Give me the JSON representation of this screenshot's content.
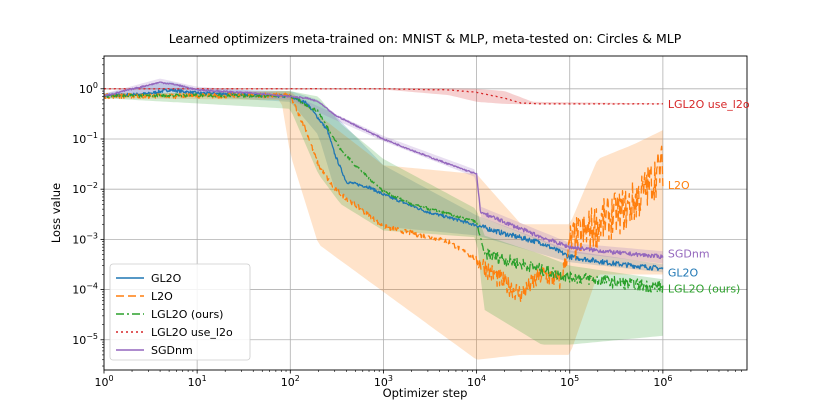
{
  "chart_data": {
    "type": "line",
    "title": "Learned optimizers meta-trained on: MNIST & MLP, meta-tested on: Circles & MLP",
    "xlabel": "Optimizer step",
    "ylabel": "Loss value",
    "xscale": "log",
    "yscale": "log",
    "xlim": [
      1,
      8000000
    ],
    "ylim": [
      2.5e-06,
      4.5
    ],
    "grid": true,
    "legend_position": "lower-left",
    "x_ticks": [
      {
        "value": 1,
        "base": "10",
        "exp": "0"
      },
      {
        "value": 10,
        "base": "10",
        "exp": "1"
      },
      {
        "value": 100,
        "base": "10",
        "exp": "2"
      },
      {
        "value": 1000,
        "base": "10",
        "exp": "3"
      },
      {
        "value": 10000,
        "base": "10",
        "exp": "4"
      },
      {
        "value": 100000,
        "base": "10",
        "exp": "5"
      },
      {
        "value": 1000000,
        "base": "10",
        "exp": "6"
      }
    ],
    "y_ticks": [
      {
        "value": 1,
        "base": "10",
        "exp": "0"
      },
      {
        "value": 0.1,
        "base": "10",
        "exp": "−1"
      },
      {
        "value": 0.01,
        "base": "10",
        "exp": "−2"
      },
      {
        "value": 0.001,
        "base": "10",
        "exp": "−3"
      },
      {
        "value": 0.0001,
        "base": "10",
        "exp": "−4"
      },
      {
        "value": 1e-05,
        "base": "10",
        "exp": "−5"
      }
    ],
    "series": [
      {
        "name": "GL2O",
        "end_label": "GL2O",
        "color": "#1f77b4",
        "dash": "solid",
        "points": [
          [
            1,
            0.72
          ],
          [
            3,
            0.8
          ],
          [
            5,
            0.95
          ],
          [
            10,
            0.82
          ],
          [
            30,
            0.78
          ],
          [
            70,
            0.72
          ],
          [
            100,
            0.7
          ],
          [
            150,
            0.52
          ],
          [
            250,
            0.15
          ],
          [
            300,
            0.05
          ],
          [
            400,
            0.014
          ],
          [
            700,
            0.011
          ],
          [
            1000,
            0.0078
          ],
          [
            3000,
            0.0035
          ],
          [
            6000,
            0.0025
          ],
          [
            10000,
            0.0019
          ],
          [
            20000,
            0.0013
          ],
          [
            50000,
            0.00085
          ],
          [
            100000,
            0.00045
          ],
          [
            300000,
            0.00033
          ],
          [
            1000000,
            0.00026
          ]
        ],
        "band": [
          [
            1,
            0.65,
            0.8
          ],
          [
            5,
            0.8,
            1.4
          ],
          [
            10,
            0.7,
            1.0
          ],
          [
            100,
            0.55,
            0.9
          ],
          [
            200,
            0.12,
            0.6
          ],
          [
            300,
            0.01,
            0.3
          ],
          [
            1000,
            0.0018,
            0.03
          ],
          [
            10000,
            0.0012,
            0.003
          ],
          [
            100000,
            0.00035,
            0.0006
          ],
          [
            1000000,
            0.00022,
            0.00032
          ]
        ]
      },
      {
        "name": "L2O",
        "end_label": "L2O",
        "color": "#ff7f0e",
        "dash": "8,4",
        "points": [
          [
            1,
            0.72
          ],
          [
            10,
            0.72
          ],
          [
            80,
            0.75
          ],
          [
            100,
            0.72
          ],
          [
            150,
            0.14
          ],
          [
            200,
            0.03
          ],
          [
            300,
            0.01
          ],
          [
            1000,
            0.0018
          ],
          [
            5000,
            0.0009
          ],
          [
            10000,
            0.0004
          ],
          [
            15000,
            0.0002
          ],
          [
            30000,
            8e-05
          ],
          [
            50000,
            0.0002
          ],
          [
            80000,
            0.00015
          ],
          [
            100000,
            0.0008
          ],
          [
            200000,
            0.002
          ],
          [
            400000,
            0.004
          ],
          [
            600000,
            0.008
          ],
          [
            1000000,
            0.03
          ]
        ],
        "band": [
          [
            1,
            0.65,
            0.8
          ],
          [
            80,
            0.6,
            0.9
          ],
          [
            100,
            0.05,
            0.9
          ],
          [
            200,
            0.0008,
            0.3
          ],
          [
            1000,
            9e-05,
            0.03
          ],
          [
            10000,
            4e-06,
            0.02
          ],
          [
            30000,
            5e-06,
            0.002
          ],
          [
            100000,
            5e-06,
            0.002
          ],
          [
            200000,
            0.0002,
            0.04
          ],
          [
            500000,
            0.0002,
            0.08
          ],
          [
            1000000,
            0.0002,
            0.15
          ]
        ]
      },
      {
        "name": "LGL2O (ours)",
        "end_label": "LGL2O (ours)",
        "color": "#2ca02c",
        "dash": "8,3,2,3",
        "points": [
          [
            1,
            0.72
          ],
          [
            10,
            0.74
          ],
          [
            100,
            0.72
          ],
          [
            200,
            0.35
          ],
          [
            350,
            0.06
          ],
          [
            500,
            0.03
          ],
          [
            1000,
            0.009
          ],
          [
            2000,
            0.005
          ],
          [
            5000,
            0.0032
          ],
          [
            10000,
            0.0022
          ],
          [
            12000,
            0.00055
          ],
          [
            20000,
            0.0004
          ],
          [
            50000,
            0.00025
          ],
          [
            100000,
            0.00018
          ],
          [
            300000,
            0.00014
          ],
          [
            1000000,
            0.00011
          ]
        ],
        "band": [
          [
            1,
            0.65,
            0.8
          ],
          [
            100,
            0.4,
            0.9
          ],
          [
            200,
            0.02,
            0.7
          ],
          [
            350,
            0.005,
            0.2
          ],
          [
            1000,
            0.0015,
            0.04
          ],
          [
            10000,
            0.0011,
            0.004
          ],
          [
            12000,
            4e-05,
            0.0012
          ],
          [
            50000,
            8e-06,
            0.0005
          ],
          [
            100000,
            8e-06,
            0.0003
          ],
          [
            1000000,
            1.2e-05,
            0.00016
          ]
        ]
      },
      {
        "name": "LGL2O use_l2o",
        "end_label": "LGL2O use_l2o",
        "color": "#d62728",
        "dash": "2,3",
        "points": [
          [
            1,
            1.0
          ],
          [
            100,
            1.0
          ],
          [
            1000,
            1.0
          ],
          [
            5000,
            0.95
          ],
          [
            10000,
            0.85
          ],
          [
            20000,
            0.65
          ],
          [
            30000,
            0.52
          ],
          [
            50000,
            0.5
          ],
          [
            1000000,
            0.5
          ]
        ],
        "band": [
          [
            1,
            0.97,
            1.03
          ],
          [
            1000,
            0.97,
            1.03
          ],
          [
            5000,
            0.75,
            1.02
          ],
          [
            10000,
            0.55,
            1.0
          ],
          [
            20000,
            0.5,
            0.9
          ],
          [
            40000,
            0.49,
            0.55
          ],
          [
            1000000,
            0.49,
            0.51
          ]
        ]
      },
      {
        "name": "SGDnm",
        "end_label": "SGDnm",
        "color": "#9467bd",
        "dash": "solid",
        "points": [
          [
            1,
            0.72
          ],
          [
            4,
            1.35
          ],
          [
            6,
            1.2
          ],
          [
            10,
            0.95
          ],
          [
            50,
            0.8
          ],
          [
            100,
            0.7
          ],
          [
            150,
            0.65
          ],
          [
            200,
            0.55
          ],
          [
            300,
            0.3
          ],
          [
            1000,
            0.1
          ],
          [
            3000,
            0.045
          ],
          [
            6000,
            0.028
          ],
          [
            10000,
            0.02
          ],
          [
            11000,
            0.0035
          ],
          [
            20000,
            0.0022
          ],
          [
            50000,
            0.0011
          ],
          [
            100000,
            0.0007
          ],
          [
            300000,
            0.00055
          ],
          [
            1000000,
            0.00045
          ]
        ],
        "band": [
          [
            1,
            0.65,
            0.8
          ],
          [
            4,
            0.9,
            1.6
          ],
          [
            10,
            0.8,
            1.1
          ],
          [
            100,
            0.6,
            0.8
          ],
          [
            1000,
            0.09,
            0.115
          ],
          [
            10000,
            0.017,
            0.024
          ],
          [
            11000,
            0.0028,
            0.0045
          ],
          [
            100000,
            0.00055,
            0.00085
          ],
          [
            1000000,
            0.00033,
            0.00058
          ]
        ]
      }
    ]
  }
}
